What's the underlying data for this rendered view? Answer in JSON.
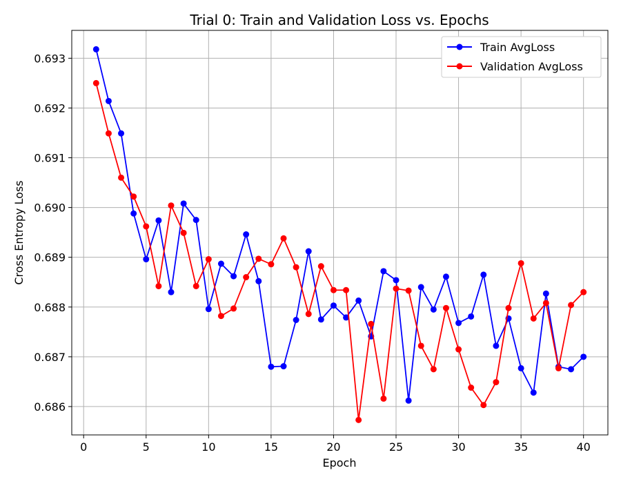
{
  "chart_data": {
    "type": "line",
    "title": "Trial 0: Train and Validation Loss vs. Epochs",
    "xlabel": "Epoch",
    "ylabel": "Cross Entropy Loss",
    "xlim": [
      -0.95,
      41.95
    ],
    "ylim": [
      0.68543,
      0.69356
    ],
    "xticks": [
      0,
      5,
      10,
      15,
      20,
      25,
      30,
      35,
      40
    ],
    "yticks": [
      0.686,
      0.687,
      0.688,
      0.689,
      0.69,
      0.691,
      0.692,
      0.693
    ],
    "ytick_labels": [
      "0.686",
      "0.687",
      "0.688",
      "0.689",
      "0.690",
      "0.691",
      "0.692",
      "0.693"
    ],
    "grid": true,
    "legend_position": "top-right",
    "x": [
      1,
      2,
      3,
      4,
      5,
      6,
      7,
      8,
      9,
      10,
      11,
      12,
      13,
      14,
      15,
      16,
      17,
      18,
      19,
      20,
      21,
      22,
      23,
      24,
      25,
      26,
      27,
      28,
      29,
      30,
      31,
      32,
      33,
      34,
      35,
      36,
      37,
      38,
      39,
      40
    ],
    "series": [
      {
        "name": "Train AvgLoss",
        "color": "#0000ff",
        "values": [
          0.69318,
          0.69214,
          0.69149,
          0.68988,
          0.68896,
          0.68974,
          0.6883,
          0.69008,
          0.68975,
          0.68796,
          0.68887,
          0.68862,
          0.68946,
          0.68852,
          0.6868,
          0.68681,
          0.68774,
          0.68912,
          0.68775,
          0.68803,
          0.68779,
          0.68813,
          0.68741,
          0.68872,
          0.68854,
          0.68612,
          0.6884,
          0.68795,
          0.68861,
          0.68768,
          0.68781,
          0.68865,
          0.68722,
          0.68777,
          0.68677,
          0.68628,
          0.68827,
          0.6868,
          0.68675,
          0.687
        ]
      },
      {
        "name": "Validation AvgLoss",
        "color": "#ff0000",
        "values": [
          0.6925,
          0.69149,
          0.6906,
          0.69022,
          0.68962,
          0.68842,
          0.69004,
          0.68949,
          0.68842,
          0.68896,
          0.68782,
          0.68797,
          0.6886,
          0.68897,
          0.68886,
          0.68938,
          0.6888,
          0.68786,
          0.68882,
          0.68834,
          0.68834,
          0.68573,
          0.68766,
          0.68616,
          0.68837,
          0.68833,
          0.68722,
          0.68675,
          0.68798,
          0.68715,
          0.68638,
          0.68603,
          0.68649,
          0.68798,
          0.68888,
          0.68777,
          0.68808,
          0.68677,
          0.68804,
          0.6883
        ]
      }
    ]
  }
}
